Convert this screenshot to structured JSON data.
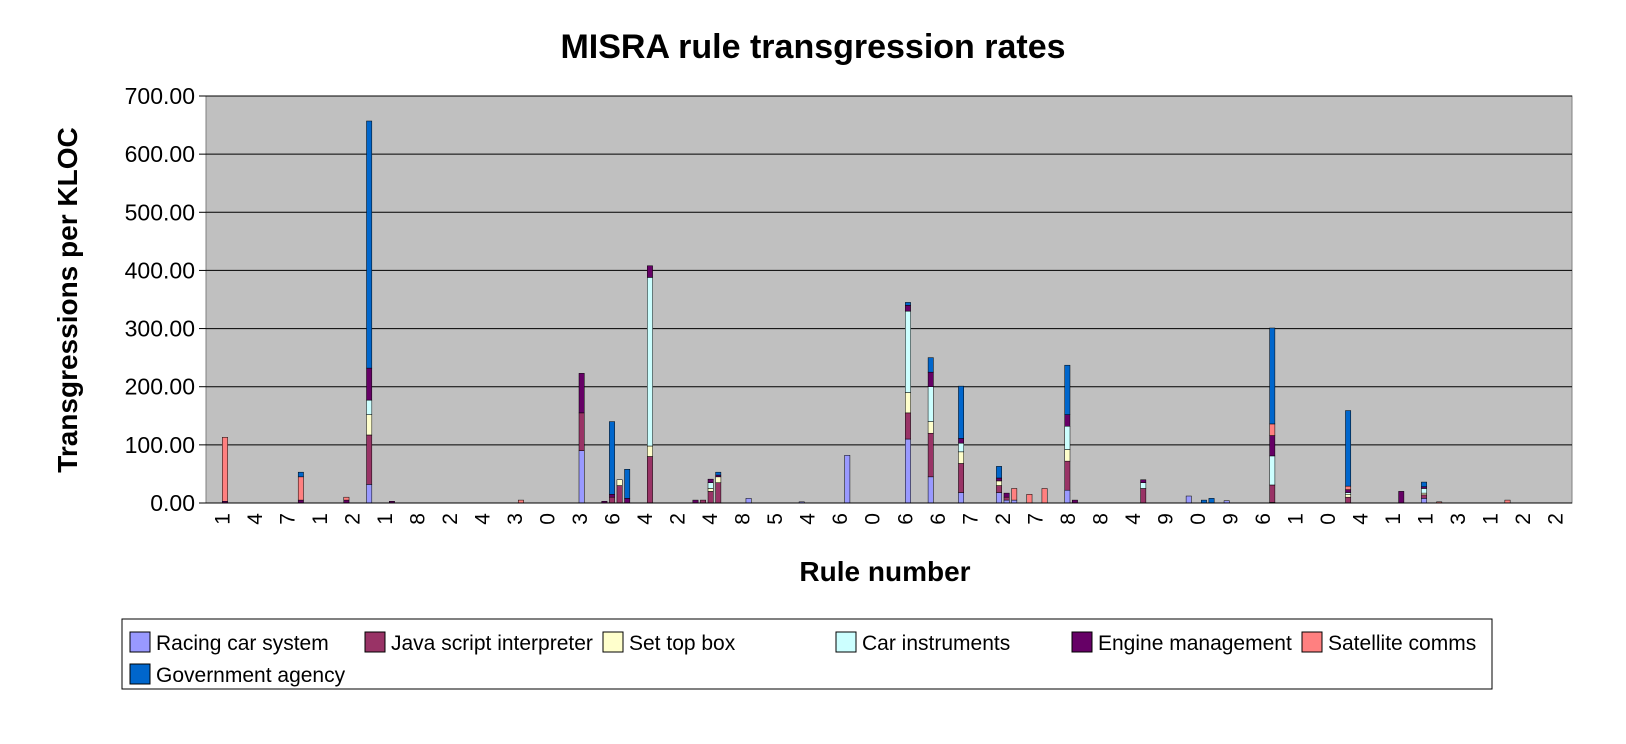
{
  "chart_data": {
    "type": "bar",
    "stacked": true,
    "title": "MISRA rule transgression rates",
    "xlabel": "Rule number",
    "ylabel": "Transgressions per KLOC",
    "ylim": [
      0,
      700
    ],
    "yticks": [
      "0.00",
      "100.00",
      "200.00",
      "300.00",
      "400.00",
      "500.00",
      "600.00",
      "700.00"
    ],
    "grid": true,
    "legend_position": "bottom",
    "plot_background": "#c0c0c0",
    "xtick_labels": [
      "1",
      "4",
      "7",
      "1",
      "2",
      "1",
      "8",
      "2",
      "4",
      "3",
      "0",
      "3",
      "6",
      "4",
      "2",
      "4",
      "8",
      "5",
      "4",
      "6",
      "0",
      "6",
      "6",
      "7",
      "2",
      "7",
      "8",
      "8",
      "4",
      "9",
      "0",
      "9",
      "6",
      "1",
      "0",
      "4",
      "1",
      "1",
      "3",
      "1",
      "2",
      "2"
    ],
    "series": [
      {
        "name": "Racing car system",
        "color": "#9999ff",
        "values": [
          [
            21,
            32
          ],
          [
            49,
            90
          ],
          [
            71,
            8
          ],
          [
            78,
            2
          ],
          [
            84,
            82
          ],
          [
            92,
            110
          ],
          [
            95,
            45
          ],
          [
            99,
            18
          ],
          [
            104,
            18
          ],
          [
            105,
            5
          ],
          [
            106,
            5
          ],
          [
            113,
            22
          ],
          [
            129,
            12
          ],
          [
            134,
            4
          ],
          [
            140,
            1
          ],
          [
            160,
            8
          ]
        ]
      },
      {
        "name": "Java script interpreter",
        "color": "#993366",
        "values": [
          [
            21,
            85
          ],
          [
            49,
            65
          ],
          [
            53,
            10
          ],
          [
            54,
            30
          ],
          [
            58,
            80
          ],
          [
            65,
            5
          ],
          [
            66,
            20
          ],
          [
            67,
            35
          ],
          [
            92,
            45
          ],
          [
            95,
            75
          ],
          [
            99,
            50
          ],
          [
            104,
            12
          ],
          [
            105,
            5
          ],
          [
            113,
            50
          ],
          [
            123,
            25
          ],
          [
            140,
            30
          ],
          [
            150,
            10
          ],
          [
            160,
            6
          ]
        ]
      },
      {
        "name": "Set top box",
        "color": "#ffffcc",
        "values": [
          [
            21,
            35
          ],
          [
            54,
            10
          ],
          [
            58,
            18
          ],
          [
            66,
            5
          ],
          [
            67,
            10
          ],
          [
            92,
            35
          ],
          [
            95,
            20
          ],
          [
            99,
            20
          ],
          [
            104,
            8
          ],
          [
            113,
            20
          ],
          [
            150,
            5
          ],
          [
            160,
            3
          ]
        ]
      },
      {
        "name": "Car instruments",
        "color": "#ccffff",
        "values": [
          [
            21,
            25
          ],
          [
            58,
            290
          ],
          [
            66,
            10
          ],
          [
            92,
            140
          ],
          [
            95,
            60
          ],
          [
            99,
            15
          ],
          [
            113,
            40
          ],
          [
            123,
            10
          ],
          [
            140,
            50
          ],
          [
            150,
            3
          ],
          [
            160,
            8
          ]
        ]
      },
      {
        "name": "Engine management",
        "color": "#660066",
        "values": [
          [
            2,
            3
          ],
          [
            12,
            5
          ],
          [
            18,
            5
          ],
          [
            21,
            55
          ],
          [
            24,
            3
          ],
          [
            49,
            68
          ],
          [
            52,
            3
          ],
          [
            53,
            5
          ],
          [
            55,
            8
          ],
          [
            58,
            20
          ],
          [
            64,
            5
          ],
          [
            66,
            6
          ],
          [
            67,
            3
          ],
          [
            92,
            10
          ],
          [
            95,
            25
          ],
          [
            99,
            8
          ],
          [
            104,
            5
          ],
          [
            105,
            7
          ],
          [
            113,
            20
          ],
          [
            114,
            5
          ],
          [
            123,
            5
          ],
          [
            140,
            35
          ],
          [
            150,
            5
          ],
          [
            157,
            20
          ],
          [
            160,
            3
          ]
        ]
      },
      {
        "name": "Satellite comms",
        "color": "#ff8080",
        "values": [
          [
            2,
            110
          ],
          [
            12,
            40
          ],
          [
            18,
            5
          ],
          [
            41,
            5
          ],
          [
            106,
            20
          ],
          [
            108,
            15
          ],
          [
            110,
            25
          ],
          [
            140,
            20
          ],
          [
            150,
            6
          ],
          [
            162,
            2
          ],
          [
            171,
            5
          ]
        ]
      },
      {
        "name": "Government agency",
        "color": "#0066cc",
        "values": [
          [
            12,
            8
          ],
          [
            21,
            425
          ],
          [
            53,
            125
          ],
          [
            55,
            50
          ],
          [
            67,
            5
          ],
          [
            92,
            5
          ],
          [
            95,
            25
          ],
          [
            99,
            90
          ],
          [
            104,
            20
          ],
          [
            113,
            85
          ],
          [
            131,
            5
          ],
          [
            132,
            8
          ],
          [
            140,
            165
          ],
          [
            150,
            130
          ],
          [
            160,
            8
          ]
        ]
      }
    ]
  }
}
